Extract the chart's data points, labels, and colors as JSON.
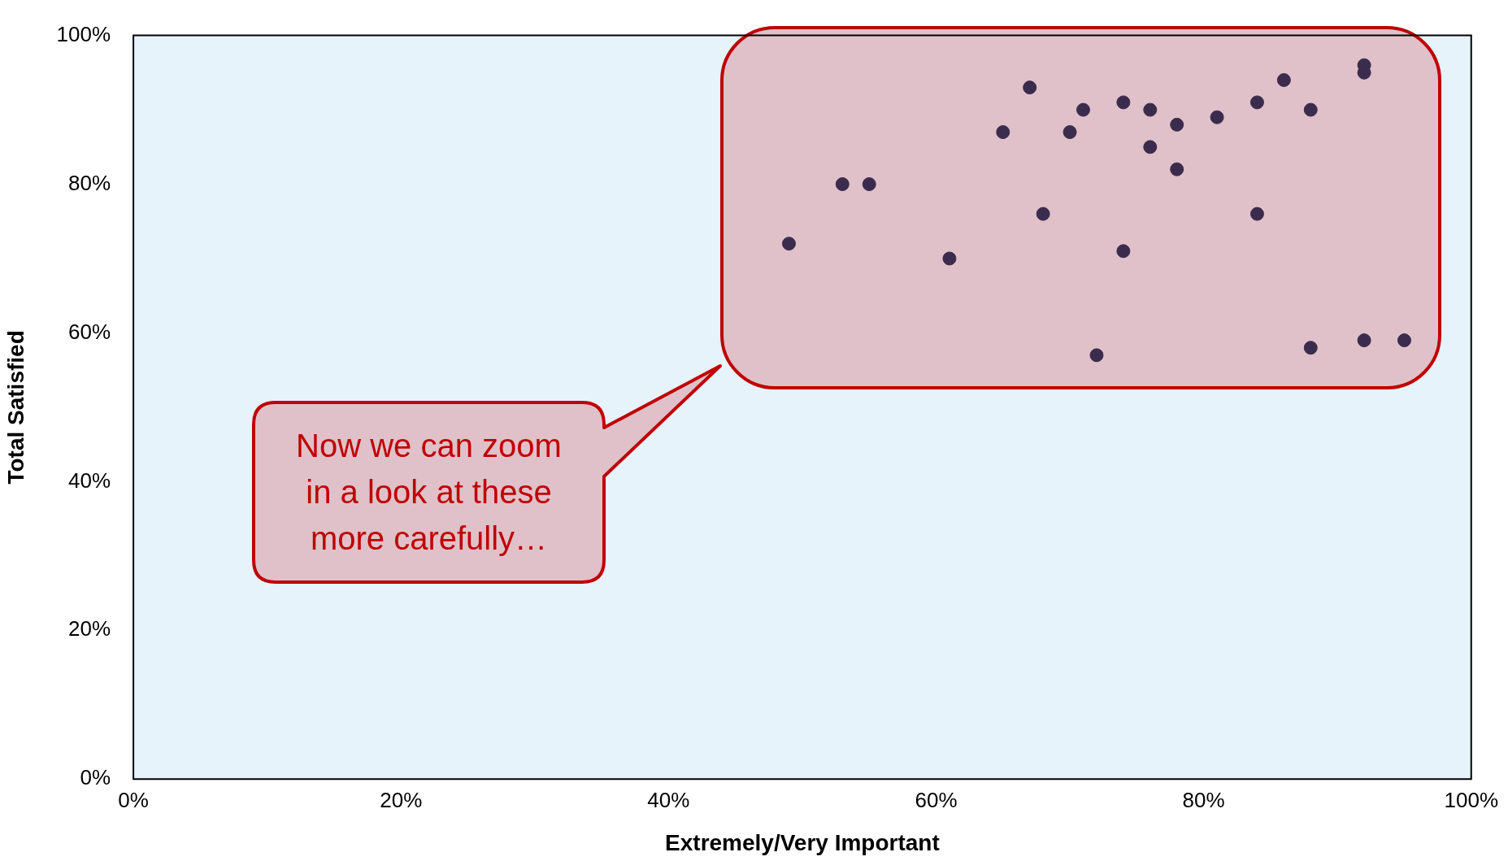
{
  "chart_data": {
    "type": "scatter",
    "xlabel": "Extremely/Very Important",
    "ylabel": "Total Satisfied",
    "x": [
      49,
      53,
      55,
      61,
      65,
      67,
      68,
      70,
      71,
      72,
      74,
      74,
      76,
      76,
      78,
      78,
      81,
      84,
      84,
      86,
      88,
      88,
      92,
      92,
      92,
      95
    ],
    "series": [
      {
        "color": "#3b2c4e",
        "values": [
          72,
          80,
          80,
          70,
          87,
          93,
          76,
          87,
          90,
          57,
          91,
          71,
          90,
          85,
          88,
          82,
          89,
          91,
          76,
          94,
          90,
          58,
          96,
          95,
          59,
          59
        ]
      }
    ],
    "xlim": [
      0,
      100
    ],
    "ylim": [
      0,
      100
    ],
    "xticks": [
      {
        "value": 0,
        "label": "0%"
      },
      {
        "value": 20,
        "label": "20%"
      },
      {
        "value": 40,
        "label": "40%"
      },
      {
        "value": 60,
        "label": "60%"
      },
      {
        "value": 80,
        "label": "80%"
      },
      {
        "value": 100,
        "label": "100%"
      }
    ],
    "yticks": [
      {
        "value": 0,
        "label": "0%"
      },
      {
        "value": 20,
        "label": "20%"
      },
      {
        "value": 40,
        "label": "40%"
      },
      {
        "value": 60,
        "label": "60%"
      },
      {
        "value": 80,
        "label": "80%"
      },
      {
        "value": 100,
        "label": "100%"
      }
    ],
    "annotations": [
      "Now we can zoom in a look at these more carefully…"
    ],
    "grid": false,
    "legend": false,
    "marker": "circle"
  }
}
